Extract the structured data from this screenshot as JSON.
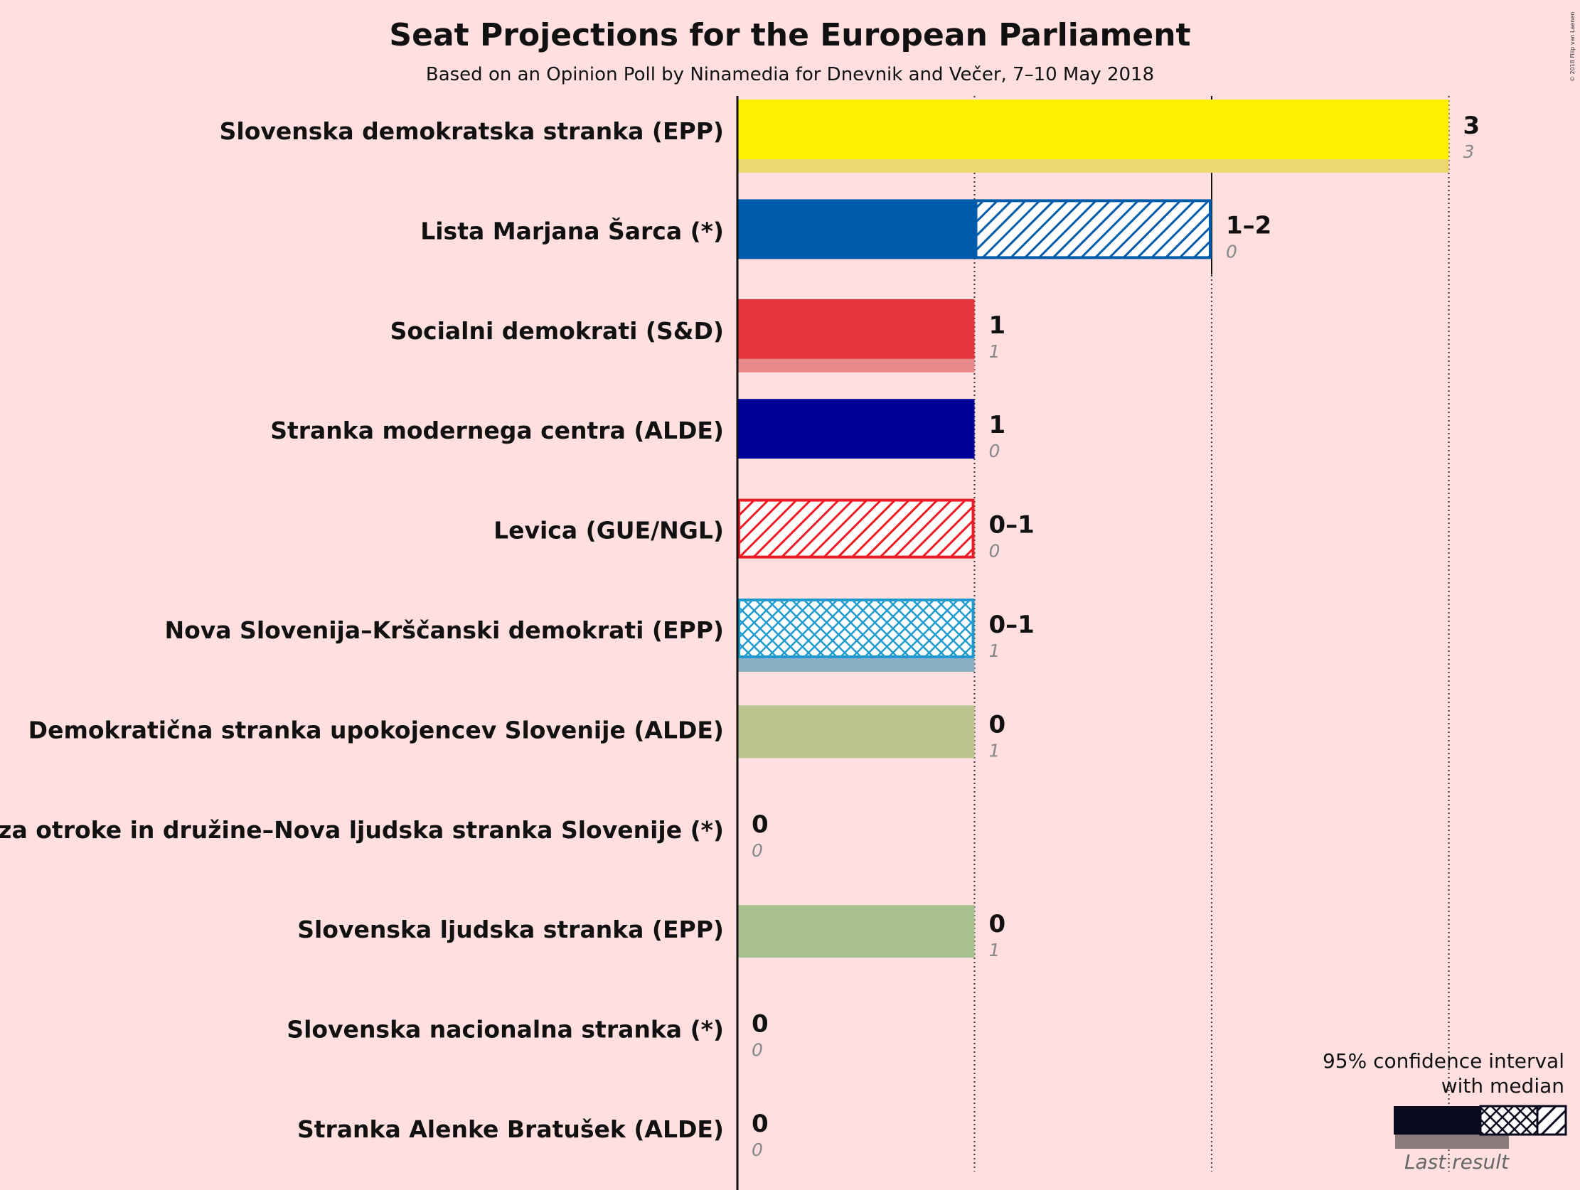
{
  "title": "Seat Projections for the European Parliament",
  "subtitle": "Based on an Opinion Poll by Ninamedia for Dnevnik and Večer, 7–10 May 2018",
  "copyright": "© 2018 Filip van Laenen",
  "legend": {
    "line1": "95% confidence interval",
    "line2": "with median",
    "last_result": "Last result"
  },
  "chart_data": {
    "type": "bar",
    "orientation": "horizontal",
    "x_unit": "seats",
    "xlim": [
      0,
      3
    ],
    "gridlines": [
      1,
      2,
      3
    ],
    "parties": [
      {
        "name": "Slovenska demokratska stranka (EPP)",
        "low": 3,
        "median": 3,
        "high": 3,
        "last": 3,
        "range_label": "3",
        "last_label": "3",
        "color": "#FFF100",
        "last_color": "#EDD870",
        "pattern": "none"
      },
      {
        "name": "Lista Marjana Šarca (*)",
        "low": 1,
        "median": 1,
        "high": 2,
        "last": 0,
        "range_label": "1–2",
        "last_label": "0",
        "color": "#005BAA",
        "last_color": "#7A9EC8",
        "pattern": "diag"
      },
      {
        "name": "Socialni demokrati (S&D)",
        "low": 1,
        "median": 1,
        "high": 1,
        "last": 1,
        "range_label": "1",
        "last_label": "1",
        "color": "#E3363A",
        "last_color": "#E88A8C",
        "pattern": "none"
      },
      {
        "name": "Stranka modernega centra (ALDE)",
        "low": 1,
        "median": 1,
        "high": 1,
        "last": 0,
        "range_label": "1",
        "last_label": "0",
        "color": "#000099",
        "last_color": "#6E6EB0",
        "pattern": "none"
      },
      {
        "name": "Levica (GUE/NGL)",
        "low": 0,
        "median": 0,
        "high": 1,
        "last": 0,
        "range_label": "0–1",
        "last_label": "0",
        "color": "#ED1C24",
        "last_color": "#E88A8C",
        "pattern": "diag"
      },
      {
        "name": "Nova Slovenija–Krščanski demokrati (EPP)",
        "low": 0,
        "median": 1,
        "high": 1,
        "last": 1,
        "range_label": "0–1",
        "last_label": "1",
        "color": "#1F9BCF",
        "last_color": "#8BAFC4",
        "pattern": "cross"
      },
      {
        "name": "Demokratična stranka upokojencev Slovenije (ALDE)",
        "low": 0,
        "median": 0,
        "high": 0,
        "last": 1,
        "range_label": "0",
        "last_label": "1",
        "color": "#9DAF5F",
        "last_color": "#BCC48F",
        "pattern": "none"
      },
      {
        "name": "Glas za otroke in družine–Nova ljudska stranka Slovenije (*)",
        "low": 0,
        "median": 0,
        "high": 0,
        "last": 0,
        "range_label": "0",
        "last_label": "0",
        "color": "#888888",
        "last_color": "#AAAAAA",
        "pattern": "none"
      },
      {
        "name": "Slovenska ljudska stranka (EPP)",
        "low": 0,
        "median": 0,
        "high": 0,
        "last": 1,
        "range_label": "0",
        "last_label": "1",
        "color": "#6C9F4F",
        "last_color": "#A7C08F",
        "pattern": "none"
      },
      {
        "name": "Slovenska nacionalna stranka (*)",
        "low": 0,
        "median": 0,
        "high": 0,
        "last": 0,
        "range_label": "0",
        "last_label": "0",
        "color": "#888888",
        "last_color": "#AAAAAA",
        "pattern": "none"
      },
      {
        "name": "Stranka Alenke Bratušek (ALDE)",
        "low": 0,
        "median": 0,
        "high": 0,
        "last": 0,
        "range_label": "0",
        "last_label": "0",
        "color": "#888888",
        "last_color": "#AAAAAA",
        "pattern": "none"
      }
    ]
  }
}
